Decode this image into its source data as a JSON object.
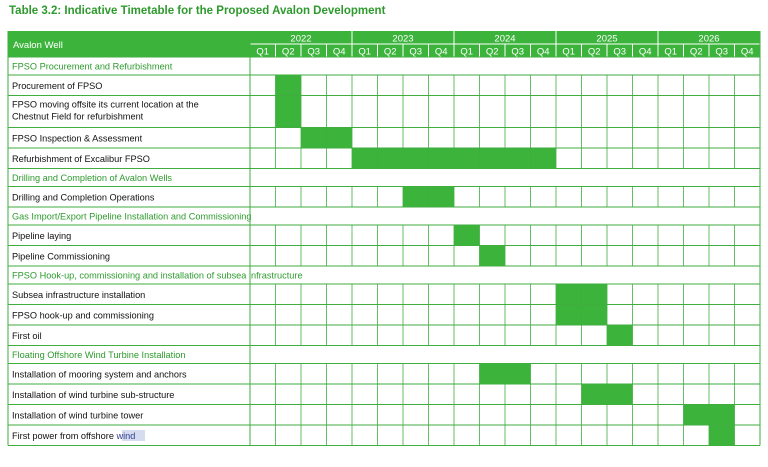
{
  "title": "Table 3.2: Indicative Timetable for the Proposed Avalon Development",
  "header": {
    "first_column": "Avalon Well",
    "years": [
      "2022",
      "2023",
      "2024",
      "2025",
      "2026"
    ],
    "quarters": [
      "Q1",
      "Q2",
      "Q3",
      "Q4"
    ]
  },
  "colors": {
    "accent": "#3cb43c",
    "section_text": "#2e9a2e",
    "grid": "#3fae3f"
  },
  "rows": [
    {
      "type": "section",
      "label": "FPSO Procurement and Refurbishment"
    },
    {
      "type": "task",
      "lines": [
        "Procurement of FPSO"
      ],
      "bar": {
        "start": "2022 Q2",
        "end": "2022 Q2"
      }
    },
    {
      "type": "task",
      "lines": [
        "FPSO moving offsite its current location at the",
        "Chestnut Field for refurbishment"
      ],
      "bar": {
        "start": "2022 Q2",
        "end": "2022 Q2"
      }
    },
    {
      "type": "task",
      "lines": [
        "FPSO Inspection & Assessment"
      ],
      "bar": {
        "start": "2022 Q3",
        "end": "2022 Q4"
      }
    },
    {
      "type": "task",
      "lines": [
        "Refurbishment of Excalibur FPSO"
      ],
      "bar": {
        "start": "2023 Q1",
        "end": "2024 Q4"
      }
    },
    {
      "type": "section",
      "label": "Drilling and Completion of Avalon Wells"
    },
    {
      "type": "task",
      "lines": [
        "Drilling and Completion Operations"
      ],
      "bar": {
        "start": "2023 Q3",
        "end": "2023 Q4"
      }
    },
    {
      "type": "section",
      "label": "Gas Import/Export Pipeline Installation and Commissioning"
    },
    {
      "type": "task",
      "lines": [
        "Pipeline laying"
      ],
      "bar": {
        "start": "2024 Q1",
        "end": "2024 Q1"
      }
    },
    {
      "type": "task",
      "lines": [
        "Pipeline Commissioning"
      ],
      "bar": {
        "start": "2024 Q2",
        "end": "2024 Q2"
      }
    },
    {
      "type": "section",
      "label": "FPSO Hook-up, commissioning and installation of subsea infrastructure"
    },
    {
      "type": "task",
      "lines": [
        "Subsea infrastructure installation"
      ],
      "bar": {
        "start": "2025 Q1",
        "end": "2025 Q2"
      }
    },
    {
      "type": "task",
      "lines": [
        "FPSO hook-up and commissioning"
      ],
      "bar": {
        "start": "2025 Q1",
        "end": "2025 Q2"
      }
    },
    {
      "type": "task",
      "lines": [
        "First oil"
      ],
      "bar": {
        "start": "2025 Q3",
        "end": "2025 Q3"
      }
    },
    {
      "type": "section",
      "label": "Floating Offshore Wind Turbine Installation"
    },
    {
      "type": "task",
      "lines": [
        "Installation of mooring system and anchors"
      ],
      "bar": {
        "start": "2024 Q2",
        "end": "2024 Q3"
      }
    },
    {
      "type": "task",
      "lines": [
        "Installation of wind turbine sub-structure"
      ],
      "bar": {
        "start": "2025 Q2",
        "end": "2025 Q3"
      }
    },
    {
      "type": "task",
      "lines": [
        "Installation of wind turbine tower"
      ],
      "bar": {
        "start": "2026 Q2",
        "end": "2026 Q3"
      }
    },
    {
      "type": "task",
      "lines": [
        "First power from offshore wind"
      ],
      "bar": {
        "start": "2026 Q3",
        "end": "2026 Q3"
      }
    }
  ]
}
